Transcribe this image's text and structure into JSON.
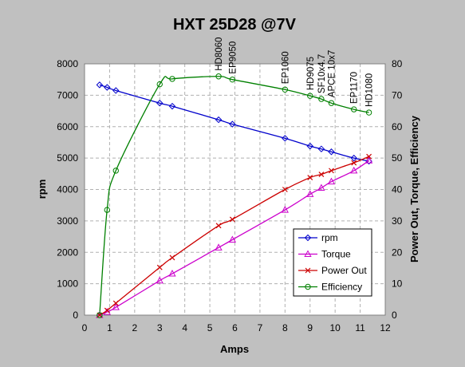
{
  "chart_data": {
    "type": "line",
    "title": "HXT 25D28 @7V",
    "xlabel": "Amps",
    "ylabel_left": "rpm",
    "ylabel_right": "Power Out, Torque, Efficiency",
    "xlim": [
      0,
      12
    ],
    "ylim_left": [
      0,
      8000
    ],
    "ylim_right": [
      0,
      80
    ],
    "x_ticks": [
      "0",
      "1",
      "2",
      "3",
      "4",
      "5",
      "6",
      "7",
      "8",
      "9",
      "10",
      "11",
      "12"
    ],
    "y_left_ticks": [
      "0",
      "1000",
      "2000",
      "3000",
      "4000",
      "5000",
      "6000",
      "7000",
      "8000"
    ],
    "y_right_ticks": [
      "0",
      "10",
      "20",
      "30",
      "40",
      "50",
      "60",
      "70",
      "80"
    ],
    "grid": true,
    "legend_position": "lower-right",
    "series": [
      {
        "name": "rpm",
        "axis": "left",
        "color": "#0000cc",
        "marker": "diamond",
        "x": [
          0.6,
          0.9,
          1.25,
          3.0,
          3.5,
          5.35,
          5.9,
          8.0,
          9.0,
          9.45,
          9.85,
          10.75,
          11.35
        ],
        "y": [
          7330,
          7250,
          7150,
          6750,
          6650,
          6220,
          6080,
          5630,
          5380,
          5290,
          5200,
          5000,
          4900
        ]
      },
      {
        "name": "Torque",
        "axis": "right",
        "color": "#cc00cc",
        "marker": "triangle",
        "x": [
          0.6,
          0.9,
          1.25,
          3.0,
          3.5,
          5.35,
          5.9,
          8.0,
          9.0,
          9.45,
          9.85,
          10.75,
          11.35
        ],
        "y": [
          0,
          1,
          2.5,
          11,
          13.2,
          21.5,
          24,
          33.5,
          38.5,
          40.5,
          42.5,
          46,
          49.2
        ]
      },
      {
        "name": "Power Out",
        "axis": "right",
        "color": "#cc0000",
        "marker": "x",
        "x": [
          0.6,
          0.9,
          1.25,
          3.0,
          3.5,
          5.35,
          5.9,
          8.0,
          9.0,
          9.45,
          9.85,
          10.75,
          11.35
        ],
        "y": [
          0,
          1.5,
          3.8,
          15.2,
          18.3,
          28.5,
          30.5,
          40,
          43.8,
          44.8,
          46,
          48.5,
          50.5
        ]
      },
      {
        "name": "Efficiency",
        "axis": "right",
        "color": "#008000",
        "marker": "circle",
        "x": [
          0.6,
          0.9,
          1.25,
          3.0,
          3.5,
          5.35,
          5.9,
          8.0,
          9.0,
          9.45,
          9.85,
          10.75,
          11.35
        ],
        "y": [
          0,
          33.5,
          46,
          73.5,
          75.2,
          76,
          75,
          71.8,
          69.8,
          68.8,
          67.5,
          65.5,
          64.5
        ]
      }
    ],
    "props": [
      {
        "label": "HD8060",
        "x": 5.35
      },
      {
        "label": "EP9050",
        "x": 5.9
      },
      {
        "label": "EP1060",
        "x": 8.0
      },
      {
        "label": "HD9075",
        "x": 9.0
      },
      {
        "label": "SF10x4.7",
        "x": 9.45
      },
      {
        "label": "APCE 10x7",
        "x": 9.85
      },
      {
        "label": "EP1170",
        "x": 10.75
      },
      {
        "label": "HD1080",
        "x": 11.35
      }
    ]
  }
}
